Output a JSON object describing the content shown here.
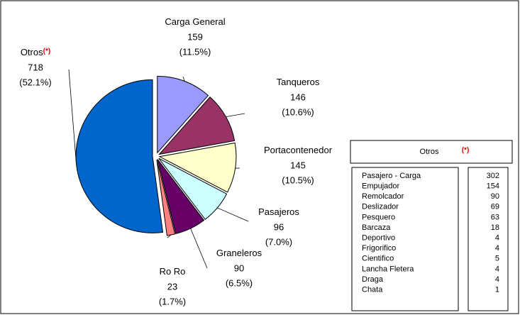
{
  "chart_data": {
    "type": "pie",
    "categories": [
      "Carga General",
      "Tanqueros",
      "Portacontenedor",
      "Pasajeros",
      "Graneleros",
      "Ro Ro",
      "Otros"
    ],
    "values": [
      159,
      146,
      145,
      96,
      90,
      23,
      718
    ],
    "percent_labels": [
      "(11.5%)",
      "(10.6%)",
      "(10.5%)",
      "(7.0%)",
      "(6.5%)",
      "(1.7%)",
      "(52.1%)"
    ],
    "colors": [
      "#9999ff",
      "#993366",
      "#ffffcc",
      "#ccffff",
      "#660066",
      "#ff8080",
      "#0066cc"
    ],
    "other_note": "(*)"
  },
  "table": {
    "title": "Otros",
    "note": "(*)",
    "rows": [
      [
        "Pasajero - Carga",
        302
      ],
      [
        "Empujador",
        154
      ],
      [
        "Remolcador",
        90
      ],
      [
        "Deslizador",
        69
      ],
      [
        "Pesquero",
        63
      ],
      [
        "Barcaza",
        18
      ],
      [
        "Deportivo",
        4
      ],
      [
        "Frigorifico",
        4
      ],
      [
        "Cientifico",
        5
      ],
      [
        "Lancha Fletera",
        4
      ],
      [
        "Draga",
        4
      ],
      [
        "Chata",
        1
      ]
    ]
  }
}
